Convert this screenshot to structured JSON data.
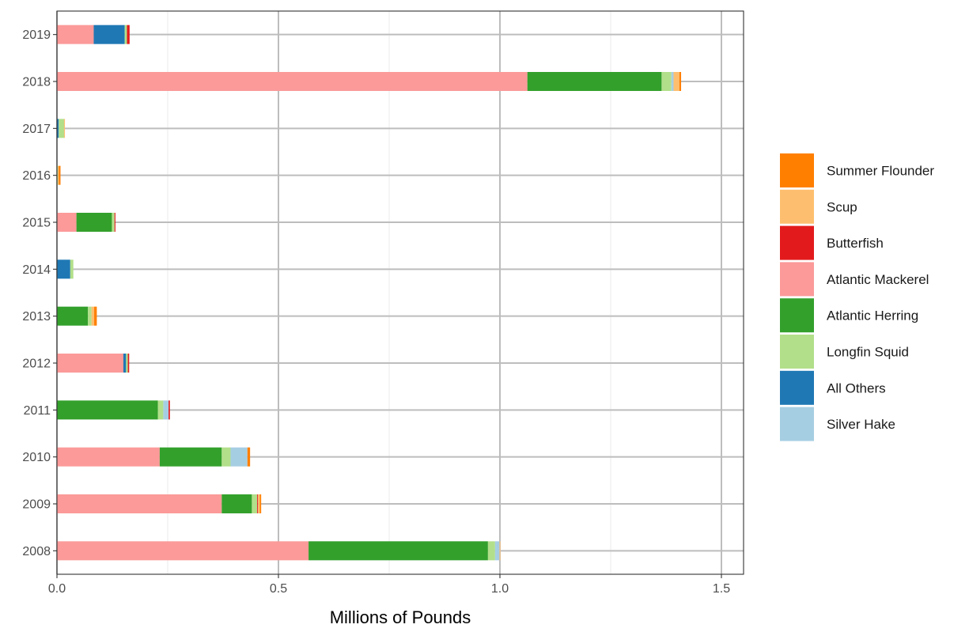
{
  "chart_data": {
    "type": "bar",
    "orientation": "horizontal",
    "stacked": true,
    "title": "",
    "xlabel": "Millions of Pounds",
    "ylabel": "",
    "xlim": [
      0,
      1.55
    ],
    "x_ticks": [
      0.0,
      0.5,
      1.0,
      1.5
    ],
    "x_tick_labels": [
      "0.0",
      "0.5",
      "1.0",
      "1.5"
    ],
    "grid": true,
    "legend_position": "right",
    "categories": [
      "2019",
      "2018",
      "2017",
      "2016",
      "2015",
      "2014",
      "2013",
      "2012",
      "2011",
      "2010",
      "2009",
      "2008"
    ],
    "series": [
      {
        "name": "Atlantic Mackerel",
        "color": "#FB9A99",
        "values": [
          0.083,
          1.062,
          0.0,
          0.0,
          0.044,
          0.0,
          0.0,
          0.15,
          0.0,
          0.232,
          0.372,
          0.568
        ]
      },
      {
        "name": "Atlantic Herring",
        "color": "#33A02C",
        "values": [
          0.0,
          0.303,
          0.0,
          0.0,
          0.08,
          0.0,
          0.07,
          0.0,
          0.228,
          0.14,
          0.068,
          0.405
        ]
      },
      {
        "name": "All Others",
        "color": "#1F78B4",
        "values": [
          0.07,
          0.0,
          0.004,
          0.0,
          0.0,
          0.03,
          0.0,
          0.006,
          0.0,
          0.0,
          0.0,
          0.0
        ]
      },
      {
        "name": "Longfin Squid",
        "color": "#B2DF8A",
        "values": [
          0.005,
          0.022,
          0.012,
          0.002,
          0.006,
          0.007,
          0.008,
          0.004,
          0.012,
          0.02,
          0.012,
          0.016
        ]
      },
      {
        "name": "Silver Hake",
        "color": "#A6CEE3",
        "values": [
          0.0,
          0.005,
          0.0,
          0.0,
          0.0,
          0.0,
          0.0,
          0.0,
          0.012,
          0.038,
          0.0,
          0.01
        ]
      },
      {
        "name": "Butterfish",
        "color": "#E31A1C",
        "values": [
          0.006,
          0.0,
          0.0,
          0.0,
          0.002,
          0.0,
          0.0,
          0.003,
          0.003,
          0.0,
          0.002,
          0.0
        ]
      },
      {
        "name": "Scup",
        "color": "#FDBF6F",
        "values": [
          0.0,
          0.013,
          0.002,
          0.002,
          0.0,
          0.0,
          0.006,
          0.0,
          0.0,
          0.0,
          0.004,
          0.002
        ]
      },
      {
        "name": "Summer Flounder",
        "color": "#FF7F00",
        "values": [
          0.0,
          0.004,
          0.0,
          0.004,
          0.0,
          0.0,
          0.006,
          0.0,
          0.0,
          0.006,
          0.003,
          0.0
        ]
      }
    ],
    "legend": [
      {
        "name": "Summer Flounder",
        "color": "#FF7F00"
      },
      {
        "name": "Scup",
        "color": "#FDBF6F"
      },
      {
        "name": "Butterfish",
        "color": "#E31A1C"
      },
      {
        "name": "Atlantic Mackerel",
        "color": "#FB9A99"
      },
      {
        "name": "Atlantic Herring",
        "color": "#33A02C"
      },
      {
        "name": "Longfin Squid",
        "color": "#B2DF8A"
      },
      {
        "name": "All Others",
        "color": "#1F78B4"
      },
      {
        "name": "Silver Hake",
        "color": "#A6CEE3"
      }
    ]
  }
}
